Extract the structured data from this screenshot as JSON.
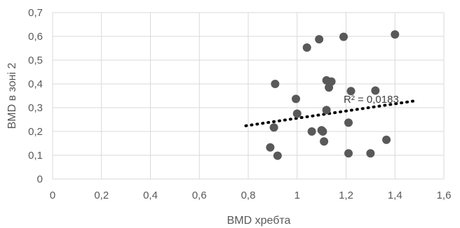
{
  "chart_data": {
    "type": "scatter",
    "xlabel": "BMD хребта",
    "ylabel": "BMD в зоні 2",
    "xlim": [
      0,
      1.6
    ],
    "ylim": [
      0,
      0.7
    ],
    "x_ticks": [
      "0",
      "0,2",
      "0,4",
      "0,6",
      "0,8",
      "1",
      "1,2",
      "1,4",
      "1,6"
    ],
    "y_ticks": [
      "0",
      "0,1",
      "0,2",
      "0,3",
      "0,4",
      "0,5",
      "0,6",
      "0,7"
    ],
    "grid": true,
    "point_color": "#595959",
    "points": [
      {
        "x": 0.89,
        "y": 0.133
      },
      {
        "x": 0.905,
        "y": 0.217
      },
      {
        "x": 0.91,
        "y": 0.4
      },
      {
        "x": 0.92,
        "y": 0.098
      },
      {
        "x": 0.995,
        "y": 0.337
      },
      {
        "x": 1.0,
        "y": 0.275
      },
      {
        "x": 1.04,
        "y": 0.553
      },
      {
        "x": 1.06,
        "y": 0.2
      },
      {
        "x": 1.09,
        "y": 0.588
      },
      {
        "x": 1.1,
        "y": 0.205
      },
      {
        "x": 1.105,
        "y": 0.2
      },
      {
        "x": 1.11,
        "y": 0.158
      },
      {
        "x": 1.12,
        "y": 0.29
      },
      {
        "x": 1.12,
        "y": 0.415
      },
      {
        "x": 1.13,
        "y": 0.385
      },
      {
        "x": 1.14,
        "y": 0.41
      },
      {
        "x": 1.19,
        "y": 0.598
      },
      {
        "x": 1.21,
        "y": 0.237
      },
      {
        "x": 1.21,
        "y": 0.108
      },
      {
        "x": 1.22,
        "y": 0.37
      },
      {
        "x": 1.3,
        "y": 0.108
      },
      {
        "x": 1.32,
        "y": 0.372
      },
      {
        "x": 1.365,
        "y": 0.165
      },
      {
        "x": 1.4,
        "y": 0.608
      }
    ],
    "trendline": {
      "x": [
        0.79,
        1.49
      ],
      "y": [
        0.224,
        0.33
      ]
    },
    "annotation": {
      "text": "R² = 0,0183",
      "x": 1.19,
      "y": 0.32
    }
  }
}
